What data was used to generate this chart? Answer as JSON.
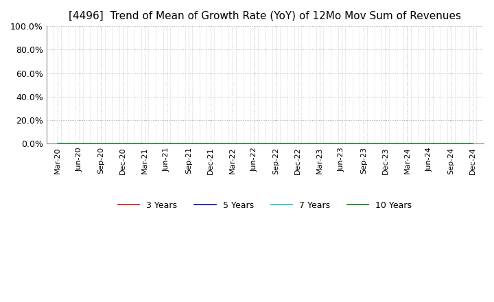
{
  "title": "[4496]  Trend of Mean of Growth Rate (YoY) of 12Mo Mov Sum of Revenues",
  "title_fontsize": 11,
  "ylim": [
    0.0,
    1.0
  ],
  "yticks": [
    0.0,
    0.2,
    0.4,
    0.6,
    0.8,
    1.0
  ],
  "background_color": "#ffffff",
  "plot_bg_color": "#ffffff",
  "grid_color": "#aaaaaa",
  "grid_linestyle": ":",
  "grid_linewidth": 0.7,
  "line_series": [
    {
      "label": "3 Years",
      "color": "#ff0000",
      "linewidth": 1.2
    },
    {
      "label": "5 Years",
      "color": "#0000cd",
      "linewidth": 1.2
    },
    {
      "label": "7 Years",
      "color": "#00cccc",
      "linewidth": 1.2
    },
    {
      "label": "10 Years",
      "color": "#008000",
      "linewidth": 1.2
    }
  ],
  "xtick_labels": [
    "Mar-20",
    "Jun-20",
    "Sep-20",
    "Dec-20",
    "Mar-21",
    "Jun-21",
    "Sep-21",
    "Dec-21",
    "Mar-22",
    "Jun-22",
    "Sep-22",
    "Dec-22",
    "Mar-23",
    "Jun-23",
    "Sep-23",
    "Dec-23",
    "Mar-24",
    "Jun-24",
    "Sep-24",
    "Dec-24"
  ],
  "legend_ncol": 4,
  "value_3yr": [
    0.0,
    0.0,
    0.0,
    0.0,
    0.0,
    0.0,
    0.0,
    0.0,
    0.0,
    0.0,
    0.0,
    0.0,
    0.0,
    0.0,
    0.0,
    0.0,
    0.0,
    0.0,
    0.0,
    0.0
  ],
  "value_5yr": [
    0.0,
    0.0,
    0.0,
    0.0,
    0.0,
    0.0,
    0.0,
    0.0,
    0.0,
    0.0,
    0.0,
    0.0,
    0.0,
    0.0,
    0.0,
    0.0,
    0.0,
    0.0,
    0.0,
    0.0
  ],
  "value_7yr": [
    0.0,
    0.0,
    0.0,
    0.0,
    0.0,
    0.0,
    0.0,
    0.0,
    0.0,
    0.0,
    0.0,
    0.0,
    0.0,
    0.0,
    0.0,
    0.0,
    0.0,
    0.0,
    0.0,
    0.0
  ],
  "value_10yr": [
    0.0,
    0.0,
    0.0,
    0.0,
    0.0,
    0.0,
    0.0,
    0.0,
    0.0,
    0.0,
    0.0,
    0.0,
    0.0,
    0.0,
    0.0,
    0.0,
    0.0,
    0.0,
    0.0,
    0.0
  ]
}
